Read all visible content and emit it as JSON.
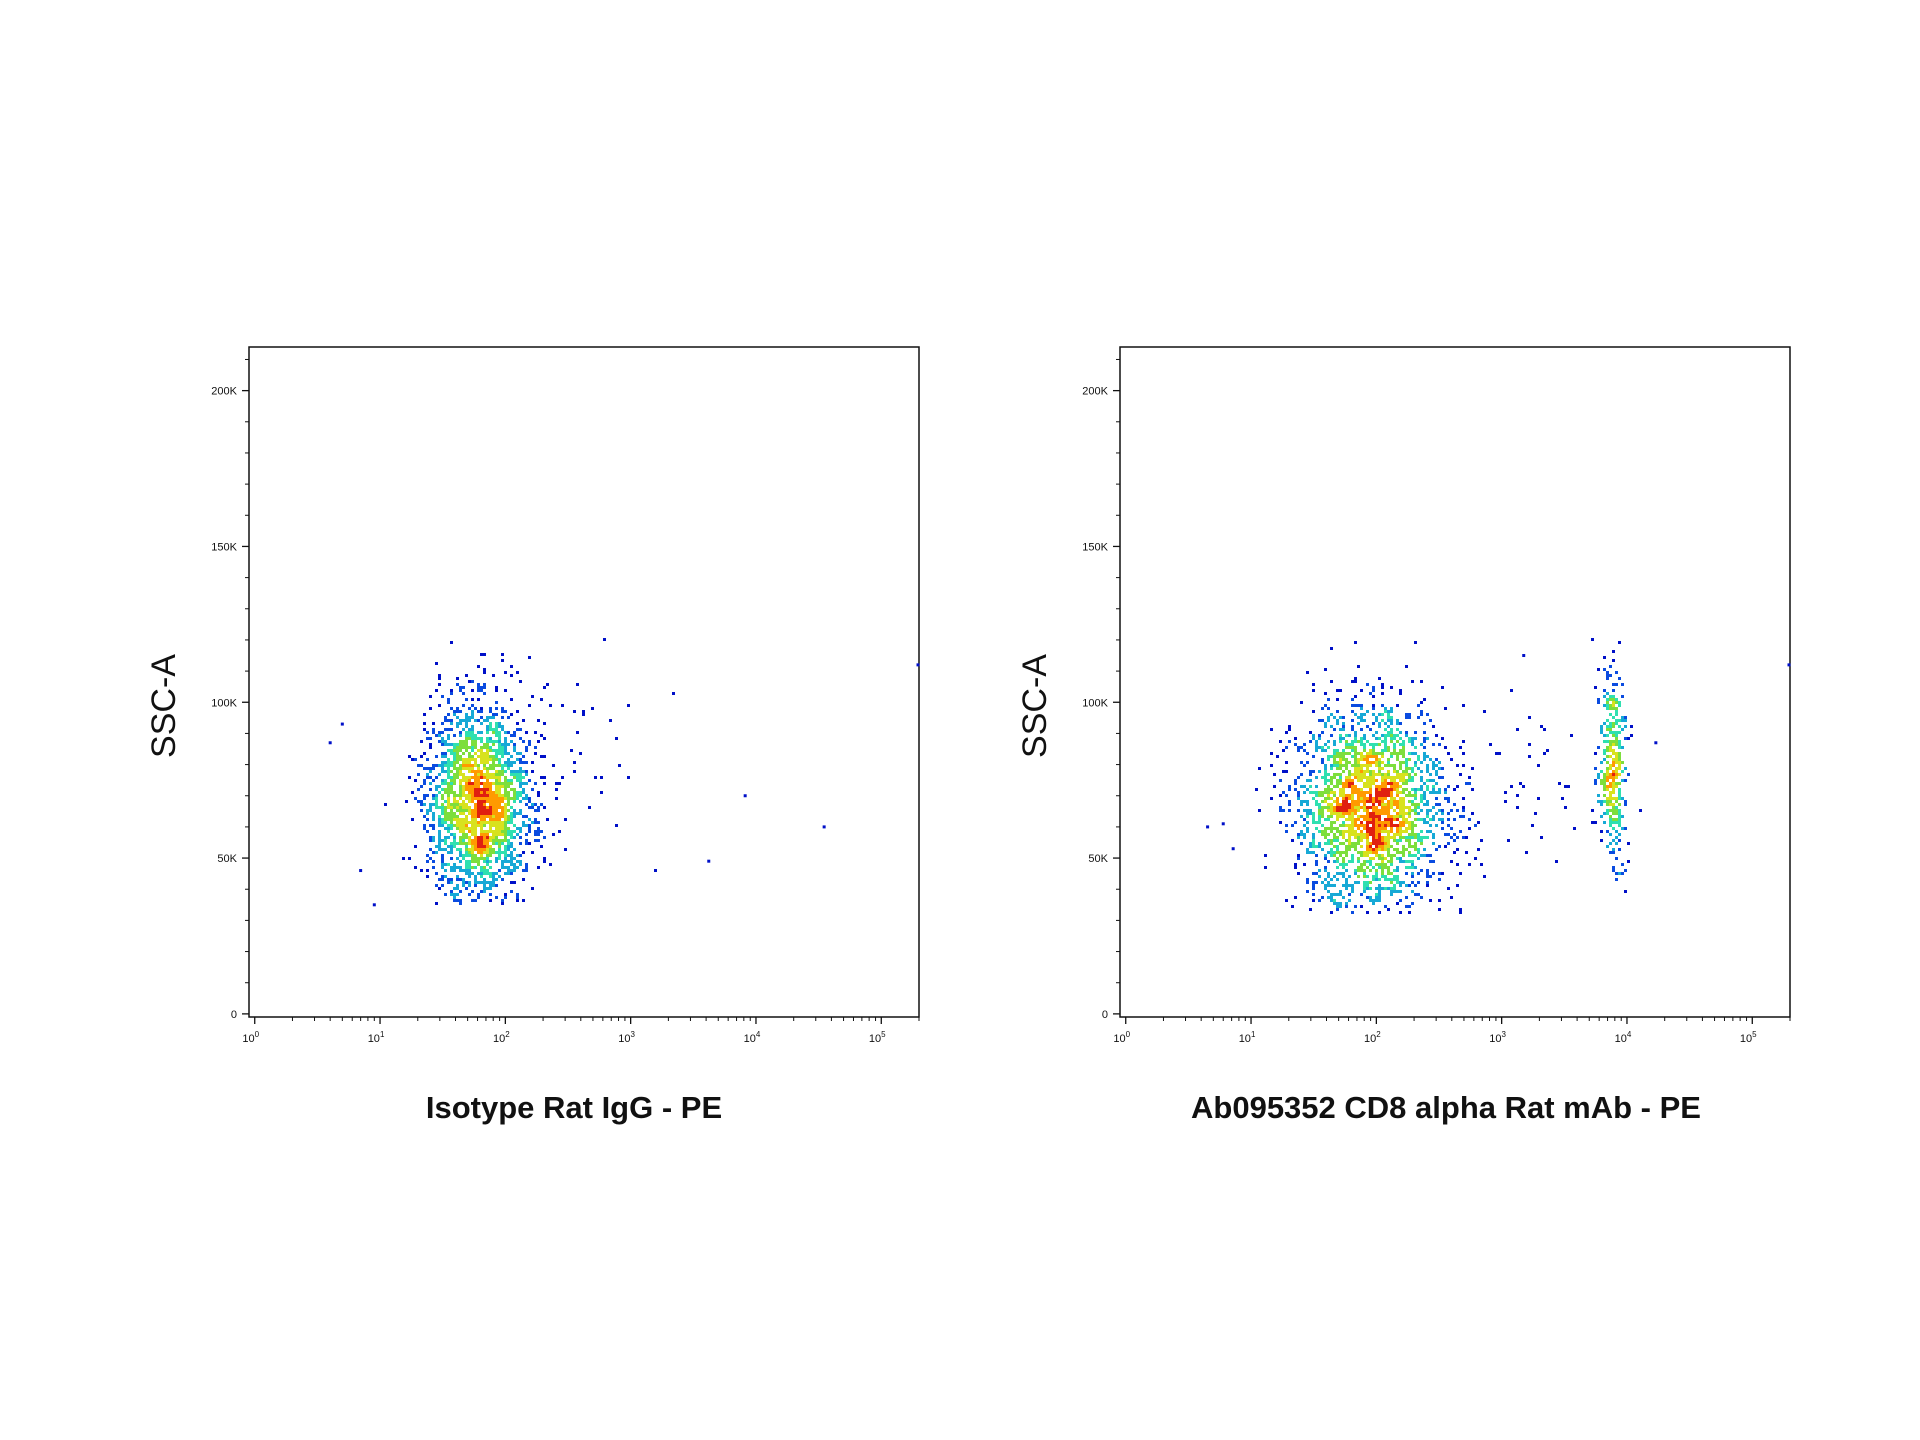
{
  "colors": {
    "background": "#ffffff",
    "axis": "#111111",
    "density_scale": [
      "#0010c8",
      "#0a4be0",
      "#17a9d6",
      "#2fe0b0",
      "#7dde3c",
      "#d8e21e",
      "#ff9a00",
      "#e02010"
    ]
  },
  "chart_data": [
    {
      "type": "scatter",
      "subtype": "flow-cytometry-density-dot-plot",
      "xlabel": "Isotype Rat IgG - PE",
      "ylabel": "SSC-A",
      "x_scale": "log",
      "x_ticks": [
        {
          "value": 1,
          "base": "10",
          "exp": "0"
        },
        {
          "value": 10,
          "base": "10",
          "exp": "1"
        },
        {
          "value": 100,
          "base": "10",
          "exp": "2"
        },
        {
          "value": 1000,
          "base": "10",
          "exp": "3"
        },
        {
          "value": 10000,
          "base": "10",
          "exp": "4"
        },
        {
          "value": 100000,
          "base": "10",
          "exp": "5"
        }
      ],
      "y_ticks": [
        {
          "value": 0,
          "label": "0"
        },
        {
          "value": 50000,
          "label": "50K"
        },
        {
          "value": 100000,
          "label": "100K"
        },
        {
          "value": 150000,
          "label": "150K"
        },
        {
          "value": 200000,
          "label": "200K"
        }
      ],
      "xlim": [
        0.9,
        200000
      ],
      "ylim": [
        -1000,
        214000
      ],
      "grid": false,
      "populations": [
        {
          "name": "",
          "x_log10_center": 1.78,
          "x_log10_spread": 0.2,
          "y_center": 68000,
          "y_spread": 16000,
          "y_range": [
            35000,
            119000
          ],
          "count": 2200
        },
        {
          "name": "",
          "x_log10_center": 2.5,
          "x_log10_spread": 0.3,
          "y_center": 85000,
          "y_spread": 20000,
          "y_range": [
            38000,
            120000
          ],
          "count": 45
        }
      ],
      "outliers": [
        [
          4,
          87000
        ],
        [
          5,
          93000
        ],
        [
          7,
          46000
        ],
        [
          9,
          35000
        ],
        [
          4200,
          49000
        ],
        [
          8200,
          70000
        ],
        [
          35000,
          60000
        ],
        [
          200000,
          112000
        ]
      ]
    },
    {
      "type": "scatter",
      "subtype": "flow-cytometry-density-dot-plot",
      "xlabel": "Ab095352 CD8 alpha Rat mAb - PE",
      "ylabel": "SSC-A",
      "x_scale": "log",
      "x_ticks": [
        {
          "value": 1,
          "base": "10",
          "exp": "0"
        },
        {
          "value": 10,
          "base": "10",
          "exp": "1"
        },
        {
          "value": 100,
          "base": "10",
          "exp": "2"
        },
        {
          "value": 1000,
          "base": "10",
          "exp": "3"
        },
        {
          "value": 10000,
          "base": "10",
          "exp": "4"
        },
        {
          "value": 100000,
          "base": "10",
          "exp": "5"
        }
      ],
      "y_ticks": [
        {
          "value": 0,
          "label": "0"
        },
        {
          "value": 50000,
          "label": "50K"
        },
        {
          "value": 100000,
          "label": "100K"
        },
        {
          "value": 150000,
          "label": "150K"
        },
        {
          "value": 200000,
          "label": "200K"
        }
      ],
      "xlim": [
        0.9,
        200000
      ],
      "ylim": [
        -1000,
        214000
      ],
      "grid": false,
      "populations": [
        {
          "name": "",
          "x_log10_center": 1.95,
          "x_log10_spread": 0.3,
          "y_center": 66000,
          "y_spread": 16000,
          "y_range": [
            32000,
            119000
          ],
          "count": 2300
        },
        {
          "name": "",
          "x_log10_center": 3.88,
          "x_log10_spread": 0.055,
          "y_center": 80000,
          "y_spread": 16000,
          "y_range": [
            38000,
            120000
          ],
          "count": 380
        },
        {
          "name": "",
          "x_log10_center": 3.1,
          "x_log10_spread": 0.35,
          "y_center": 75000,
          "y_spread": 22000,
          "y_range": [
            40000,
            118000
          ],
          "count": 40
        }
      ],
      "outliers": [
        [
          4.5,
          60000
        ],
        [
          6,
          61000
        ],
        [
          7.2,
          53000
        ],
        [
          1500,
          115000
        ],
        [
          17000,
          87000
        ],
        [
          200000,
          112000
        ]
      ]
    }
  ]
}
